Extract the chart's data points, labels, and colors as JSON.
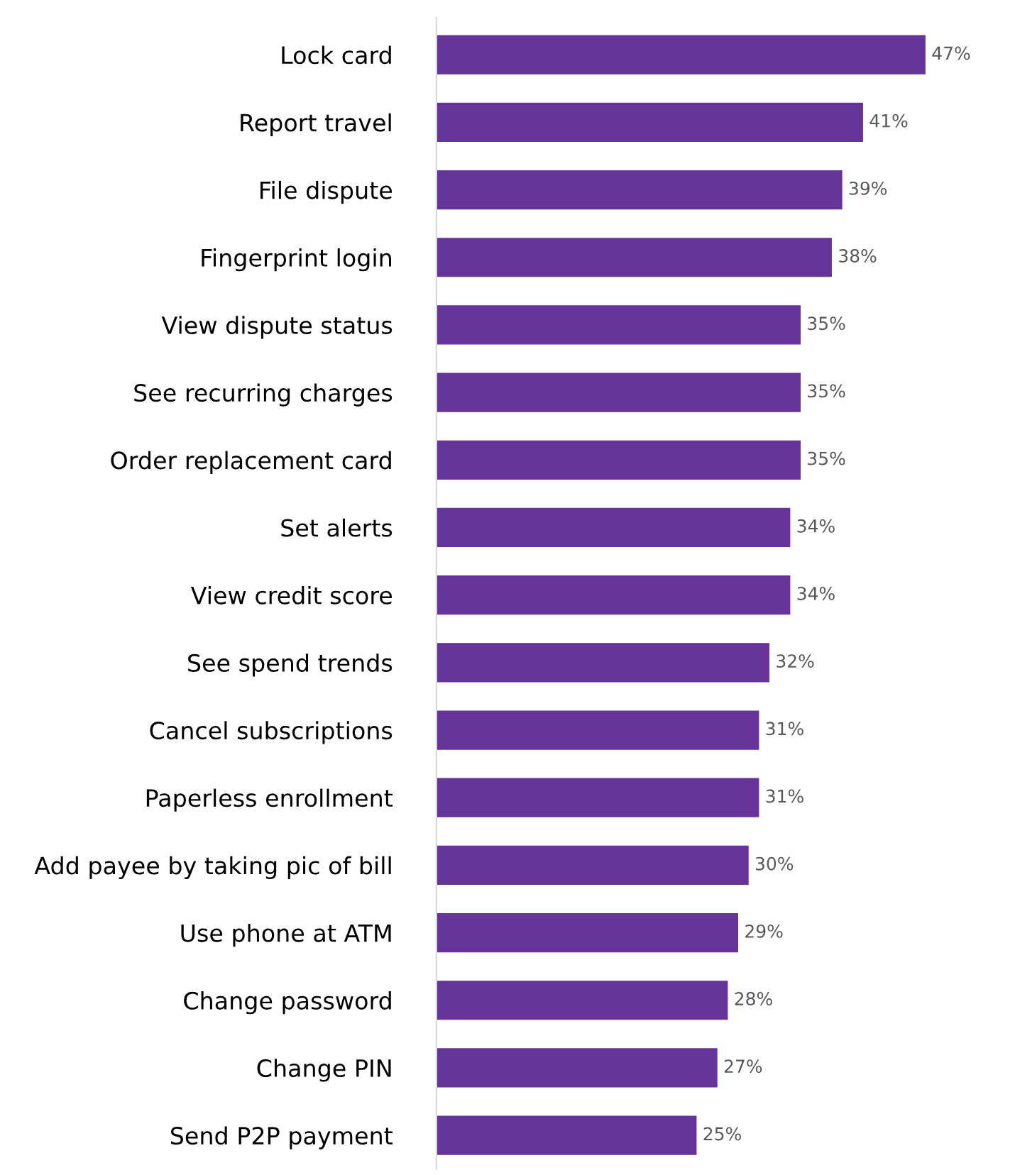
{
  "chart_data": {
    "type": "bar",
    "orientation": "horizontal",
    "categories": [
      "Lock card",
      "Report travel",
      "File dispute",
      "Fingerprint login",
      "View dispute status",
      "See recurring charges",
      "Order replacement card",
      "Set alerts",
      "View credit score",
      "See spend trends",
      "Cancel subscriptions",
      "Paperless enrollment",
      "Add payee by taking pic of bill",
      "Use phone at ATM",
      "Change password",
      "Change PIN",
      "Send P2P payment"
    ],
    "values": [
      47,
      41,
      39,
      38,
      35,
      35,
      35,
      34,
      34,
      32,
      31,
      31,
      30,
      29,
      28,
      27,
      25
    ],
    "value_labels": [
      "47%",
      "41%",
      "39%",
      "38%",
      "35%",
      "35%",
      "35%",
      "34%",
      "34%",
      "32%",
      "31%",
      "31%",
      "30%",
      "29%",
      "28%",
      "27%",
      "25%"
    ],
    "color": "#663399",
    "grid": false,
    "legend": false
  }
}
